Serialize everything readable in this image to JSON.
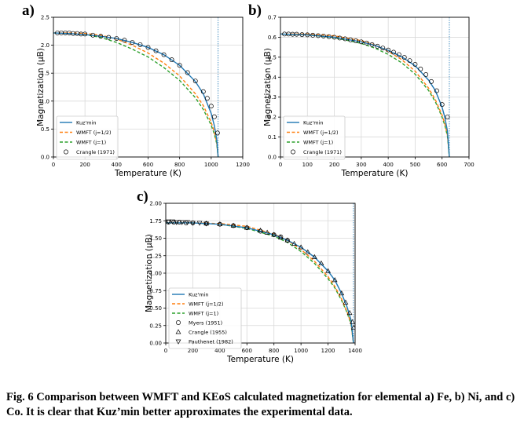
{
  "panels": [
    {
      "label": "a)"
    },
    {
      "label": "b)"
    },
    {
      "label": "c)"
    }
  ],
  "caption": "Fig. 6  Comparison between WMFT and KEoS calculated magnetization for elemental a) Fe, b) Ni, and c) Co. It is clear that Kuz’min better approximates the experimental data.",
  "colors": {
    "kuzmin": "#1f77b4",
    "wmft_half": "#ff7f0e",
    "wmft_one": "#2ca02c",
    "grid": "#d9d9d9",
    "tc_line": "#1f77b4"
  },
  "chart_data": [
    {
      "type": "line",
      "panel": "a)",
      "xlabel": "Temperature (K)",
      "ylabel": "Magnetization (μB)",
      "xlim": [
        0,
        1200
      ],
      "ylim": [
        0,
        2.5
      ],
      "xticks": [
        0,
        200,
        400,
        600,
        800,
        1000,
        1200
      ],
      "yticks": [
        0.0,
        0.5,
        1.0,
        1.5,
        2.0,
        2.5
      ],
      "grid": true,
      "legend_position": "bottom-left",
      "Tc": 1044,
      "curie_line": "vertical dotted line at Tc",
      "series": [
        {
          "name": "Kuz'min",
          "style": "solid",
          "color": "#1f77b4",
          "x": [
            0,
            100,
            200,
            300,
            400,
            500,
            600,
            700,
            800,
            900,
            950,
            1000,
            1020,
            1035,
            1044
          ],
          "y": [
            2.22,
            2.21,
            2.19,
            2.16,
            2.12,
            2.05,
            1.96,
            1.83,
            1.64,
            1.35,
            1.13,
            0.78,
            0.56,
            0.32,
            0.0
          ]
        },
        {
          "name": "WMFT (j=1/2)",
          "style": "dashed",
          "color": "#ff7f0e",
          "x": [
            0,
            100,
            200,
            300,
            400,
            500,
            600,
            700,
            800,
            900,
            950,
            1000,
            1020,
            1035,
            1044
          ],
          "y": [
            2.22,
            2.22,
            2.21,
            2.18,
            2.11,
            2.0,
            1.86,
            1.68,
            1.45,
            1.13,
            0.92,
            0.62,
            0.45,
            0.26,
            0.0
          ]
        },
        {
          "name": "WMFT (j=1)",
          "style": "dashed",
          "color": "#2ca02c",
          "x": [
            0,
            100,
            200,
            300,
            400,
            500,
            600,
            700,
            800,
            900,
            950,
            1000,
            1020,
            1035,
            1044
          ],
          "y": [
            2.22,
            2.21,
            2.19,
            2.14,
            2.05,
            1.93,
            1.79,
            1.6,
            1.37,
            1.06,
            0.85,
            0.57,
            0.41,
            0.24,
            0.0
          ]
        },
        {
          "name": "Crangle (1971)",
          "type": "scatter",
          "marker": "circle",
          "x": [
            25,
            50,
            75,
            100,
            125,
            150,
            175,
            200,
            250,
            300,
            350,
            400,
            450,
            500,
            550,
            600,
            650,
            700,
            750,
            800,
            850,
            900,
            950,
            975,
            1000,
            1020,
            1040
          ],
          "y": [
            2.22,
            2.22,
            2.22,
            2.22,
            2.21,
            2.21,
            2.2,
            2.2,
            2.18,
            2.16,
            2.14,
            2.12,
            2.09,
            2.05,
            2.01,
            1.96,
            1.9,
            1.83,
            1.74,
            1.64,
            1.51,
            1.36,
            1.17,
            1.05,
            0.91,
            0.72,
            0.43
          ]
        }
      ]
    },
    {
      "type": "line",
      "panel": "b)",
      "xlabel": "Temperature (K)",
      "ylabel": "Magnetization (μB)",
      "xlim": [
        0,
        700
      ],
      "ylim": [
        0,
        0.7
      ],
      "xticks": [
        0,
        100,
        200,
        300,
        400,
        500,
        600,
        700
      ],
      "yticks": [
        0.0,
        0.1,
        0.2,
        0.3,
        0.4,
        0.5,
        0.6,
        0.7
      ],
      "grid": true,
      "legend_position": "bottom-left",
      "Tc": 627,
      "curie_line": "vertical dotted line at Tc",
      "series": [
        {
          "name": "Kuz'min",
          "style": "solid",
          "color": "#1f77b4",
          "x": [
            0,
            100,
            200,
            300,
            350,
            400,
            450,
            500,
            550,
            575,
            600,
            610,
            620,
            627
          ],
          "y": [
            0.616,
            0.612,
            0.6,
            0.577,
            0.559,
            0.534,
            0.502,
            0.457,
            0.385,
            0.333,
            0.25,
            0.2,
            0.13,
            0.0
          ]
        },
        {
          "name": "WMFT (j=1/2)",
          "style": "dashed",
          "color": "#ff7f0e",
          "x": [
            0,
            100,
            200,
            300,
            350,
            400,
            450,
            500,
            550,
            575,
            600,
            610,
            620,
            627
          ],
          "y": [
            0.616,
            0.616,
            0.607,
            0.583,
            0.561,
            0.53,
            0.488,
            0.43,
            0.345,
            0.287,
            0.21,
            0.168,
            0.11,
            0.0
          ]
        },
        {
          "name": "WMFT (j=1)",
          "style": "dashed",
          "color": "#2ca02c",
          "x": [
            0,
            100,
            200,
            300,
            350,
            400,
            450,
            500,
            550,
            575,
            600,
            610,
            620,
            627
          ],
          "y": [
            0.616,
            0.612,
            0.598,
            0.569,
            0.546,
            0.514,
            0.472,
            0.415,
            0.333,
            0.277,
            0.2,
            0.16,
            0.105,
            0.0
          ]
        },
        {
          "name": "Crangle (1971)",
          "type": "scatter",
          "marker": "circle",
          "x": [
            15,
            30,
            45,
            60,
            80,
            100,
            120,
            140,
            160,
            180,
            200,
            220,
            240,
            260,
            280,
            300,
            320,
            340,
            360,
            380,
            400,
            420,
            440,
            460,
            480,
            500,
            520,
            540,
            560,
            580,
            600,
            620
          ],
          "y": [
            0.616,
            0.616,
            0.615,
            0.615,
            0.613,
            0.612,
            0.61,
            0.608,
            0.606,
            0.603,
            0.6,
            0.596,
            0.592,
            0.587,
            0.582,
            0.577,
            0.571,
            0.563,
            0.555,
            0.546,
            0.536,
            0.525,
            0.513,
            0.499,
            0.483,
            0.464,
            0.441,
            0.413,
            0.378,
            0.332,
            0.263,
            0.2
          ]
        }
      ]
    },
    {
      "type": "line",
      "panel": "c)",
      "xlabel": "Temperature (K)",
      "ylabel": "Magnetization (μB)",
      "xlim": [
        0,
        1400
      ],
      "ylim": [
        0,
        2.0
      ],
      "xticks": [
        0,
        200,
        400,
        600,
        800,
        1000,
        1200,
        1400
      ],
      "yticks": [
        0.0,
        0.25,
        0.5,
        0.75,
        1.0,
        1.25,
        1.5,
        1.75,
        2.0
      ],
      "grid": true,
      "legend_position": "bottom-left",
      "Tc": 1388,
      "curie_line": "vertical dotted line at Tc",
      "series": [
        {
          "name": "Kuz'min",
          "style": "solid",
          "color": "#1f77b4",
          "x": [
            0,
            200,
            400,
            600,
            800,
            900,
            1000,
            1100,
            1200,
            1250,
            1300,
            1340,
            1370,
            1388
          ],
          "y": [
            1.72,
            1.72,
            1.7,
            1.65,
            1.55,
            1.47,
            1.37,
            1.23,
            1.03,
            0.9,
            0.71,
            0.52,
            0.33,
            0.0
          ]
        },
        {
          "name": "WMFT (j=1/2)",
          "style": "dashed",
          "color": "#ff7f0e",
          "x": [
            0,
            200,
            400,
            600,
            800,
            900,
            1000,
            1100,
            1200,
            1250,
            1300,
            1340,
            1370,
            1388
          ],
          "y": [
            1.72,
            1.72,
            1.71,
            1.67,
            1.56,
            1.47,
            1.34,
            1.17,
            0.95,
            0.81,
            0.63,
            0.45,
            0.28,
            0.0
          ]
        },
        {
          "name": "WMFT (j=1)",
          "style": "dashed",
          "color": "#2ca02c",
          "x": [
            0,
            200,
            400,
            600,
            800,
            900,
            1000,
            1100,
            1200,
            1250,
            1300,
            1340,
            1370,
            1388
          ],
          "y": [
            1.72,
            1.72,
            1.7,
            1.64,
            1.53,
            1.44,
            1.31,
            1.14,
            0.92,
            0.79,
            0.61,
            0.44,
            0.27,
            0.0
          ]
        },
        {
          "name": "Myers (1951)",
          "type": "scatter",
          "marker": "circle",
          "x": [
            20,
            60,
            100,
            150,
            200,
            300,
            400,
            500,
            600,
            700,
            800,
            850,
            900
          ],
          "y": [
            1.73,
            1.73,
            1.73,
            1.72,
            1.72,
            1.71,
            1.7,
            1.68,
            1.65,
            1.6,
            1.55,
            1.52,
            1.47
          ]
        },
        {
          "name": "Crangle (1955)",
          "type": "scatter",
          "marker": "triangle-up",
          "x": [
            300,
            400,
            500,
            600,
            700,
            750,
            800,
            850,
            900,
            950,
            1000,
            1050,
            1100,
            1150,
            1200,
            1250,
            1300,
            1330,
            1360,
            1380,
            1390
          ],
          "y": [
            1.71,
            1.7,
            1.68,
            1.65,
            1.61,
            1.58,
            1.55,
            1.51,
            1.47,
            1.42,
            1.37,
            1.3,
            1.23,
            1.14,
            1.03,
            0.9,
            0.71,
            0.58,
            0.43,
            0.3,
            0.22
          ]
        },
        {
          "name": "Pauthenet (1982)",
          "type": "scatter",
          "marker": "triangle-down",
          "x": [
            20,
            50,
            80,
            120,
            160,
            200,
            250,
            300
          ],
          "y": [
            1.74,
            1.74,
            1.73,
            1.73,
            1.73,
            1.72,
            1.72,
            1.71
          ]
        }
      ]
    }
  ]
}
